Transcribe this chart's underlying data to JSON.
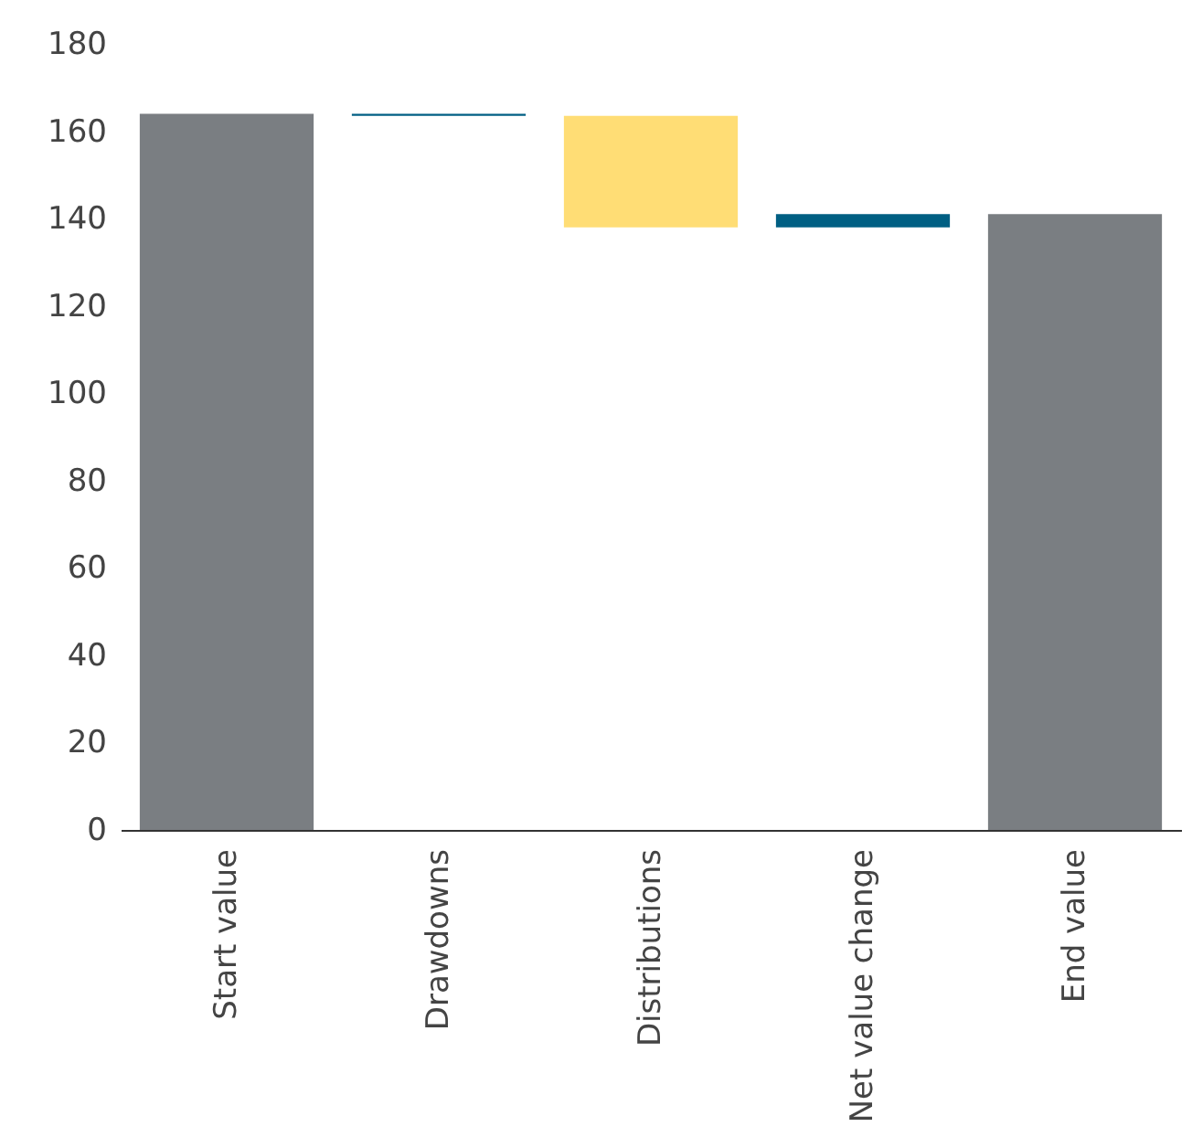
{
  "chart_data": {
    "type": "bar",
    "categories": [
      "Start value",
      "Drawdowns",
      "Distributions",
      "Net value change",
      "End value"
    ],
    "values": [
      164,
      0.5,
      -25.5,
      3,
      141
    ],
    "base": [
      0,
      163.5,
      163.5,
      138,
      0
    ],
    "colors": [
      "#7a7e82",
      "#005f83",
      "#ffdd75",
      "#005f83",
      "#7a7e82"
    ],
    "ylim": [
      0,
      180
    ],
    "yticks": [
      0,
      20,
      40,
      60,
      80,
      100,
      120,
      140,
      160,
      180
    ],
    "grid": false,
    "legend": false
  }
}
